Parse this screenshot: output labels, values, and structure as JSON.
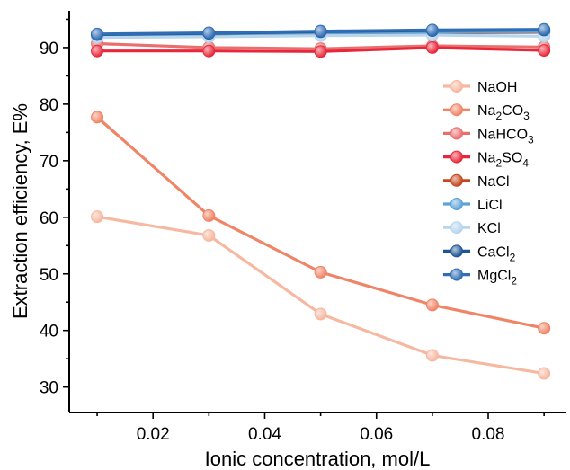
{
  "chart_data": {
    "type": "line",
    "title": "",
    "xlabel": "Ionic concentration, mol/L",
    "ylabel": "Extraction efficiency, E%",
    "xlim": [
      0.005,
      0.094
    ],
    "ylim": [
      25.5,
      96.5
    ],
    "xticks": [
      0.02,
      0.04,
      0.06,
      0.08
    ],
    "xtick_labels": [
      "0.02",
      "0.04",
      "0.06",
      "0.08"
    ],
    "yticks": [
      30,
      40,
      50,
      60,
      70,
      80,
      90
    ],
    "ytick_labels": [
      "30",
      "40",
      "50",
      "60",
      "70",
      "80",
      "90"
    ],
    "grid": false,
    "legend_position": "right",
    "x": [
      0.01,
      0.03,
      0.05,
      0.07,
      0.09
    ],
    "series": [
      {
        "name": "NaOH",
        "name_base": "NaOH",
        "name_sub": "",
        "name_tail": "",
        "color": "#F6B8A0",
        "values": [
          60.1,
          56.8,
          42.9,
          35.6,
          32.4
        ]
      },
      {
        "name": "Na2CO3",
        "name_base": "Na",
        "name_sub": "2",
        "name_tail": "CO3",
        "color": "#F08466",
        "values": [
          77.7,
          60.3,
          50.3,
          44.5,
          40.4
        ]
      },
      {
        "name": "NaHCO3",
        "name_base": "NaHCO",
        "name_sub": "3",
        "name_tail": "",
        "color": "#E96F6F",
        "values": [
          90.7,
          90.0,
          89.8,
          90.3,
          90.1
        ]
      },
      {
        "name": "Na2SO4",
        "name_base": "Na",
        "name_sub": "2",
        "name_tail": "SO4",
        "color": "#E8283A",
        "values": [
          89.4,
          89.4,
          89.3,
          90.0,
          89.5
        ]
      },
      {
        "name": "NaCl",
        "name_base": "NaCl",
        "name_sub": "",
        "name_tail": "",
        "color": "#C4461C",
        "values": [
          92.0,
          92.2,
          92.5,
          92.6,
          92.7
        ]
      },
      {
        "name": "LiCl",
        "name_base": "LiCl",
        "name_sub": "",
        "name_tail": "",
        "color": "#5DA3D9",
        "values": [
          92.2,
          92.4,
          92.6,
          92.7,
          92.8
        ]
      },
      {
        "name": "KCl",
        "name_base": "KCl",
        "name_sub": "",
        "name_tail": "",
        "color": "#B7D5EC",
        "values": [
          91.8,
          91.9,
          92.1,
          92.2,
          92.0
        ]
      },
      {
        "name": "CaCl2",
        "name_base": "CaCl",
        "name_sub": "2",
        "name_tail": "",
        "color": "#1E5694",
        "values": [
          92.3,
          92.5,
          92.8,
          93.0,
          93.1
        ]
      },
      {
        "name": "MgCl2",
        "name_base": "MgCl",
        "name_sub": "2",
        "name_tail": "",
        "color": "#2F6DB5",
        "values": [
          92.4,
          92.6,
          92.9,
          93.1,
          93.2
        ]
      }
    ]
  }
}
